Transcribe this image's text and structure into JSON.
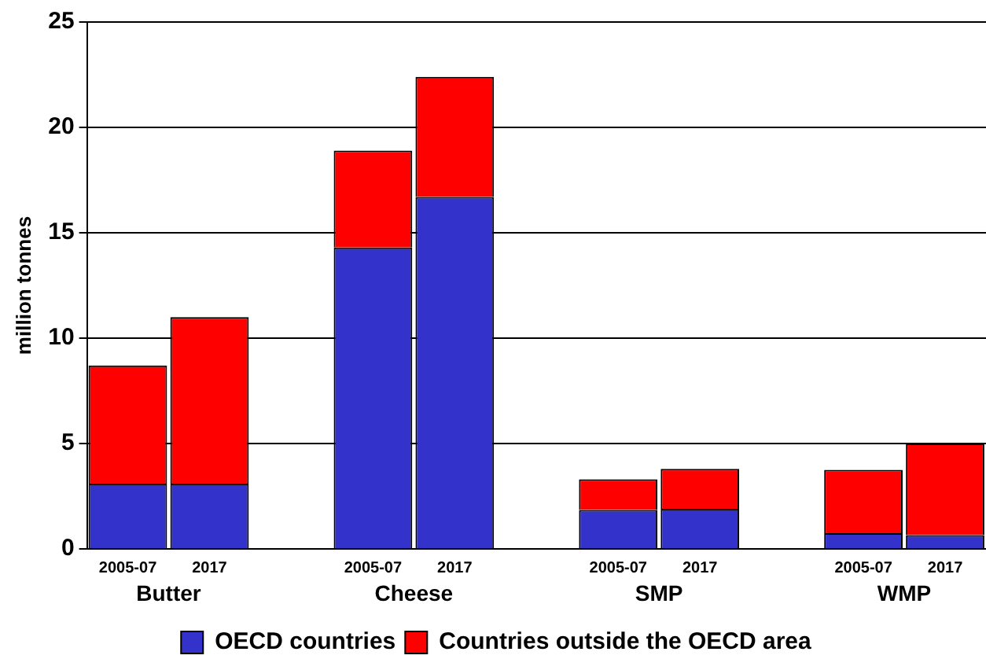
{
  "chart_data": {
    "type": "bar",
    "stacked": true,
    "ylabel": "million tonnes",
    "categories": [
      "2005-07",
      "2017",
      null,
      "2005-07",
      "2017",
      null,
      "2005-07",
      "2017",
      null,
      "2005-07",
      "2017"
    ],
    "annotations": [
      "Butter",
      "Cheese",
      "SMP",
      "WMP"
    ],
    "series": [
      {
        "name": "OECD countries",
        "color": "#3333cc",
        "values": [
          3.1,
          3.1,
          null,
          14.3,
          16.7,
          null,
          1.85,
          1.9,
          null,
          0.75,
          0.65
        ]
      },
      {
        "name": "Countries outside the OECD area",
        "color": "#ff0000",
        "values": [
          5.6,
          7.9,
          null,
          4.6,
          5.7,
          null,
          1.45,
          1.9,
          null,
          3.0,
          4.35
        ]
      }
    ],
    "ylim": [
      0,
      25
    ],
    "yticks": [
      0,
      5,
      10,
      15,
      20,
      25
    ],
    "grid": "y",
    "legend": "bottom"
  }
}
